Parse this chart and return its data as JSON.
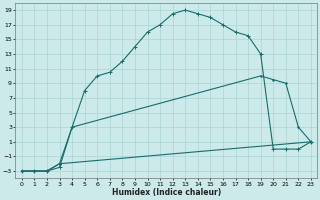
{
  "xlabel": "Humidex (Indice chaleur)",
  "bg_color": "#cceaea",
  "grid_color": "#aad4d4",
  "line_color": "#1a6b6b",
  "xlim": [
    -0.5,
    23.5
  ],
  "ylim": [
    -4,
    20
  ],
  "xticks": [
    0,
    1,
    2,
    3,
    4,
    5,
    6,
    7,
    8,
    9,
    10,
    11,
    12,
    13,
    14,
    15,
    16,
    17,
    18,
    19,
    20,
    21,
    22,
    23
  ],
  "yticks": [
    -3,
    -1,
    1,
    3,
    5,
    7,
    9,
    11,
    13,
    15,
    17,
    19
  ],
  "line1_x": [
    0,
    1,
    2,
    3,
    4,
    5,
    6,
    7,
    8,
    9,
    10,
    11,
    12,
    13,
    14,
    15,
    16,
    17,
    18,
    19,
    20,
    21,
    22,
    23
  ],
  "line1_y": [
    -3,
    -3,
    -3,
    -2.5,
    3,
    8,
    10,
    10.5,
    12,
    14,
    16,
    17,
    18.5,
    19,
    18.5,
    18,
    17,
    16,
    15.5,
    13,
    0,
    0,
    0,
    1
  ],
  "line2_x": [
    0,
    1,
    2,
    3,
    4,
    19,
    20,
    21,
    22,
    23
  ],
  "line2_y": [
    -3,
    -3,
    -3,
    -2,
    3,
    10,
    9.5,
    9,
    3,
    1
  ],
  "line3_x": [
    0,
    1,
    2,
    3,
    23
  ],
  "line3_y": [
    -3,
    -3,
    -3,
    -2,
    1
  ]
}
